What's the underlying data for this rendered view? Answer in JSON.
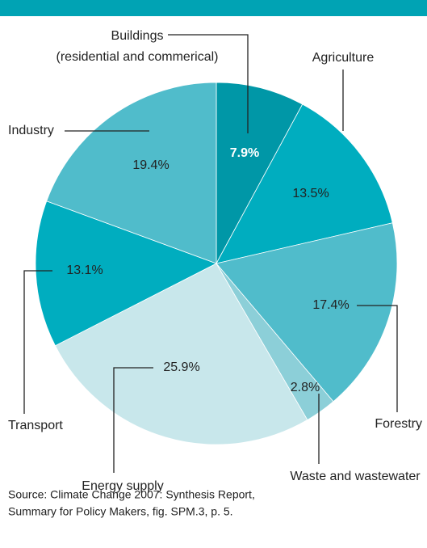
{
  "chart_data": {
    "type": "pie",
    "categories": [
      [
        "Buildings",
        "(residential and commerical)"
      ],
      "Agriculture",
      "Forestry",
      "Waste and wastewater",
      "Energy supply",
      "Transport",
      "Industry"
    ],
    "values": [
      7.9,
      13.5,
      17.4,
      2.8,
      25.9,
      13.1,
      19.4
    ],
    "value_labels": [
      "7.9%",
      "13.5%",
      "17.4%",
      "2.8%",
      "25.9%",
      "13.1%",
      "19.4%"
    ],
    "colors": [
      "#0097a7",
      "#00adbf",
      "#50bccb",
      "#8ccfd8",
      "#c8e7eb",
      "#00adbf",
      "#50bccb"
    ],
    "source": [
      "Source: Climate Change 2007: Synthesis Report,",
      "Summary for Policy Makers, fig. SPM.3, p. 5."
    ]
  }
}
